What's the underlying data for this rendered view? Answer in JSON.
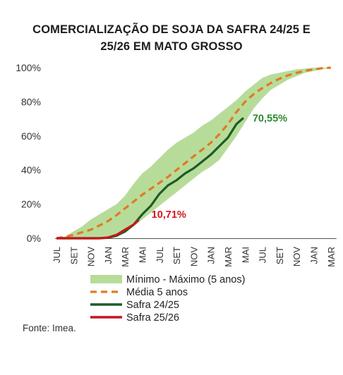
{
  "title_line1": "COMERCIALIZAÇÃO DE SOJA DA SAFRA 24/25 E",
  "title_line2": "25/26 EM MATO GROSSO",
  "source": "Fonte: Imea.",
  "colors": {
    "band": "#b7dc9a",
    "media": "#e07a22",
    "safra2425": "#1e5b26",
    "safra2526": "#c4161c",
    "label2425": "#2b8a2e",
    "label2526": "#d4151c"
  },
  "chart_data": {
    "type": "line",
    "title": "COMERCIALIZAÇÃO DE SOJA DA SAFRA 24/25 E 25/26 EM MATO GROSSO",
    "xlabel": "",
    "ylabel": "",
    "ylim": [
      0,
      100
    ],
    "y_ticks": [
      "0%",
      "20%",
      "40%",
      "60%",
      "80%",
      "100%"
    ],
    "categories": [
      "JUL",
      "SET",
      "NOV",
      "JAN",
      "MAR",
      "MAI",
      "JUL",
      "SET",
      "NOV",
      "JAN",
      "MAR",
      "MAI",
      "JUL",
      "SET",
      "NOV",
      "JAN",
      "MAR"
    ],
    "x": [
      0,
      2,
      4,
      6,
      8,
      10,
      12,
      14,
      16,
      18,
      20,
      22,
      24,
      26,
      28,
      30,
      32
    ],
    "band": {
      "name": "Mínimo - Máximo (5 anos)",
      "upper": [
        [
          0,
          0
        ],
        [
          1,
          1
        ],
        [
          2,
          4
        ],
        [
          3,
          7
        ],
        [
          4,
          11
        ],
        [
          5,
          14
        ],
        [
          6,
          17
        ],
        [
          7,
          20
        ],
        [
          8,
          25
        ],
        [
          9,
          32
        ],
        [
          10,
          38
        ],
        [
          11,
          42
        ],
        [
          12,
          47
        ],
        [
          13,
          52
        ],
        [
          14,
          56
        ],
        [
          15,
          59
        ],
        [
          16,
          62
        ],
        [
          17,
          66
        ],
        [
          18,
          69
        ],
        [
          19,
          73
        ],
        [
          20,
          77
        ],
        [
          21,
          81
        ],
        [
          22,
          86
        ],
        [
          23,
          90
        ],
        [
          24,
          94
        ],
        [
          25,
          96
        ],
        [
          26,
          97
        ],
        [
          27,
          98
        ],
        [
          28,
          99
        ],
        [
          29,
          99.5
        ],
        [
          30,
          100
        ],
        [
          31,
          100
        ],
        [
          32,
          100
        ]
      ],
      "lower": [
        [
          0,
          0
        ],
        [
          1,
          0
        ],
        [
          2,
          0
        ],
        [
          3,
          0
        ],
        [
          4,
          0
        ],
        [
          5,
          0
        ],
        [
          6,
          0.5
        ],
        [
          7,
          1.5
        ],
        [
          8,
          3
        ],
        [
          9,
          7
        ],
        [
          10,
          11
        ],
        [
          11,
          15
        ],
        [
          12,
          19
        ],
        [
          13,
          23
        ],
        [
          14,
          27
        ],
        [
          15,
          31
        ],
        [
          16,
          35
        ],
        [
          17,
          39
        ],
        [
          18,
          42
        ],
        [
          19,
          46
        ],
        [
          20,
          53
        ],
        [
          21,
          60
        ],
        [
          22,
          68
        ],
        [
          23,
          76
        ],
        [
          24,
          82
        ],
        [
          25,
          87
        ],
        [
          26,
          90
        ],
        [
          27,
          93
        ],
        [
          28,
          95
        ],
        [
          29,
          97
        ],
        [
          30,
          98
        ],
        [
          31,
          99
        ],
        [
          32,
          100
        ]
      ]
    },
    "series": [
      {
        "name": "Média 5 anos",
        "points": [
          [
            0,
            0
          ],
          [
            1,
            0.8
          ],
          [
            2,
            2
          ],
          [
            3,
            3.5
          ],
          [
            4,
            5
          ],
          [
            5,
            7.5
          ],
          [
            6,
            10
          ],
          [
            7,
            13.5
          ],
          [
            8,
            17.5
          ],
          [
            9,
            21.5
          ],
          [
            10,
            25.5
          ],
          [
            11,
            29
          ],
          [
            12,
            32.5
          ],
          [
            13,
            36
          ],
          [
            14,
            40
          ],
          [
            15,
            44
          ],
          [
            16,
            48
          ],
          [
            17,
            52
          ],
          [
            18,
            56
          ],
          [
            19,
            61
          ],
          [
            20,
            67
          ],
          [
            21,
            74
          ],
          [
            22,
            80
          ],
          [
            23,
            84.5
          ],
          [
            24,
            88
          ],
          [
            25,
            91
          ],
          [
            26,
            93.5
          ],
          [
            27,
            95.5
          ],
          [
            28,
            97
          ],
          [
            29,
            98.2
          ],
          [
            30,
            99
          ],
          [
            31,
            99.7
          ],
          [
            32,
            100
          ]
        ]
      },
      {
        "name": "Safra 24/25",
        "points": [
          [
            0,
            0
          ],
          [
            2,
            0
          ],
          [
            4,
            0
          ],
          [
            5,
            0
          ],
          [
            6,
            0.3
          ],
          [
            7,
            1.5
          ],
          [
            8,
            4
          ],
          [
            9,
            8
          ],
          [
            10,
            14
          ],
          [
            11,
            19
          ],
          [
            12,
            26
          ],
          [
            13,
            31
          ],
          [
            14,
            34
          ],
          [
            15,
            38
          ],
          [
            16,
            41
          ],
          [
            17,
            45
          ],
          [
            18,
            49
          ],
          [
            19,
            54
          ],
          [
            20,
            59
          ],
          [
            21,
            67
          ],
          [
            21.8,
            70.55
          ]
        ],
        "label": "70,55%"
      },
      {
        "name": "Safra 25/26",
        "points": [
          [
            0,
            0
          ],
          [
            2,
            0
          ],
          [
            4,
            0
          ],
          [
            5,
            0
          ],
          [
            6,
            0.4
          ],
          [
            7,
            2
          ],
          [
            8,
            5
          ],
          [
            9,
            8
          ],
          [
            9.6,
            10.71
          ]
        ],
        "label": "10,71%"
      }
    ],
    "legend_position": "bottom",
    "grid": false
  }
}
